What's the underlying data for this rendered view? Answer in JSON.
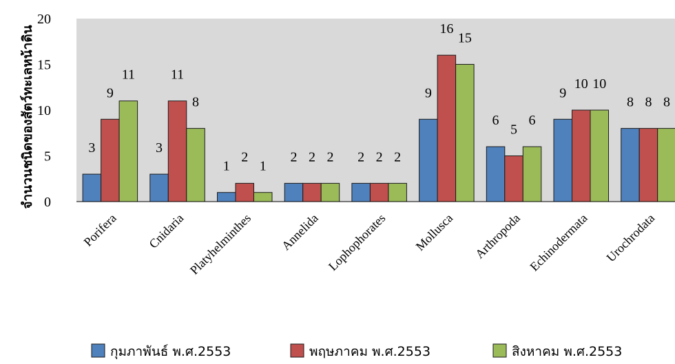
{
  "chart_data": {
    "type": "bar",
    "title": "",
    "xlabel": "",
    "ylabel": "จำนวนชนิดของสัตว์ทะเลหน้าดิน",
    "ylim": [
      0,
      20
    ],
    "yticks": [
      0,
      5,
      10,
      15,
      20
    ],
    "grid": false,
    "legend": "bottom",
    "categories": [
      "Porifera",
      "Cnidaria",
      "Platyhelminthes",
      "Annelida",
      "Lophophorates",
      "Mollusca",
      "Arthropoda",
      "Echinodermata",
      "Urochrodata"
    ],
    "series": [
      {
        "name": "กุมภาพันธ์ พ.ศ.2553",
        "color": "#4f81bd",
        "values": [
          3,
          3,
          1,
          2,
          2,
          9,
          6,
          9,
          8
        ]
      },
      {
        "name": "พฤษภาคม พ.ศ.2553",
        "color": "#c0504d",
        "values": [
          9,
          11,
          2,
          2,
          2,
          16,
          5,
          10,
          8
        ]
      },
      {
        "name": "สิงหาคม พ.ศ.2553",
        "color": "#9bbb59",
        "values": [
          11,
          8,
          1,
          2,
          2,
          15,
          6,
          10,
          8
        ]
      }
    ],
    "plot_background": "#d9d9d9"
  }
}
